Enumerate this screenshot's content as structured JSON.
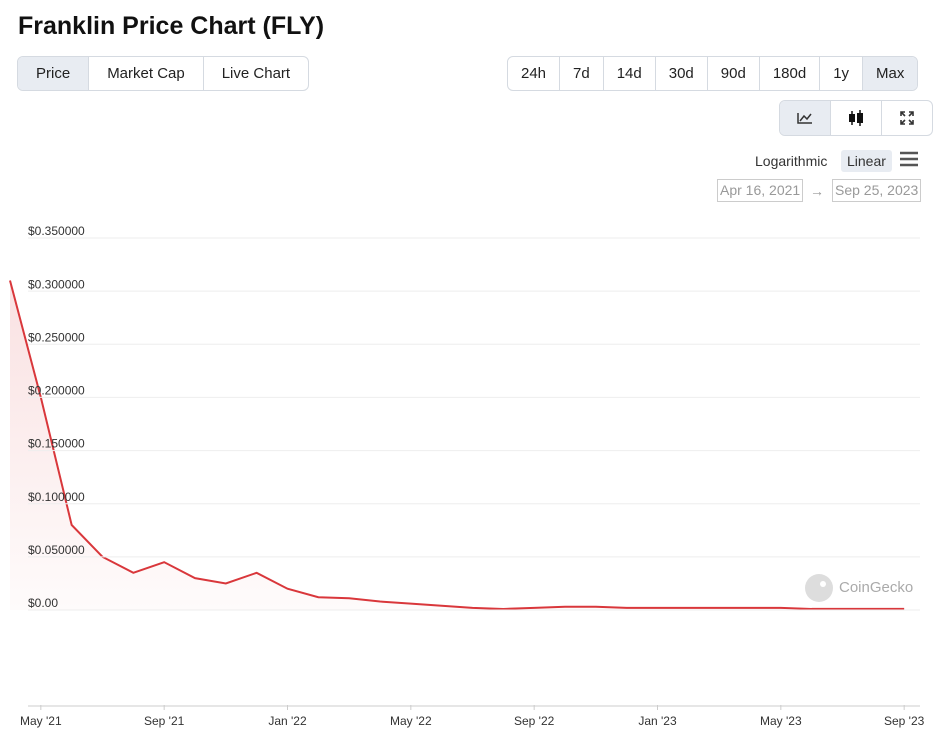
{
  "header": {
    "title": "Franklin Price Chart (FLY)"
  },
  "tabs": [
    "Price",
    "Market Cap",
    "Live Chart"
  ],
  "ranges": [
    "24h",
    "7d",
    "14d",
    "30d",
    "90d",
    "180d",
    "1y",
    "Max"
  ],
  "scale_options": [
    "Logarithmic",
    "Linear"
  ],
  "date_range": {
    "from": "Apr 16, 2021",
    "separator": "→",
    "to": "Sep 25, 2023"
  },
  "watermark": "CoinGecko",
  "chart_data": {
    "type": "line",
    "x": [
      "2021-04",
      "2021-05",
      "2021-06",
      "2021-07",
      "2021-08",
      "2021-09",
      "2021-10",
      "2021-11",
      "2021-12",
      "2022-01",
      "2022-02",
      "2022-03",
      "2022-04",
      "2022-05",
      "2022-06",
      "2022-07",
      "2022-08",
      "2022-09",
      "2022-10",
      "2022-11",
      "2022-12",
      "2023-01",
      "2023-02",
      "2023-03",
      "2023-04",
      "2023-05",
      "2023-06",
      "2023-07",
      "2023-08",
      "2023-09"
    ],
    "series": [
      {
        "name": "Price",
        "color": "#d9373b",
        "values": [
          0.31,
          0.2,
          0.08,
          0.05,
          0.035,
          0.045,
          0.03,
          0.025,
          0.035,
          0.02,
          0.012,
          0.011,
          0.008,
          0.006,
          0.004,
          0.002,
          0.001,
          0.002,
          0.003,
          0.003,
          0.002,
          0.002,
          0.002,
          0.002,
          0.002,
          0.002,
          0.001,
          0.001,
          0.001,
          0.001
        ]
      }
    ],
    "xlim": [
      "2021-04",
      "2023-10"
    ],
    "xticks": [
      {
        "value": "2021-05",
        "label": "May '21"
      },
      {
        "value": "2021-09",
        "label": "Sep '21"
      },
      {
        "value": "2022-01",
        "label": "Jan '22"
      },
      {
        "value": "2022-05",
        "label": "May '22"
      },
      {
        "value": "2022-09",
        "label": "Sep '22"
      },
      {
        "value": "2023-01",
        "label": "Jan '23"
      },
      {
        "value": "2023-05",
        "label": "May '23"
      },
      {
        "value": "2023-09",
        "label": "Sep '23"
      }
    ],
    "ylim": [
      0,
      0.35
    ],
    "yticks": [
      {
        "value": 0,
        "label": "$0.00"
      },
      {
        "value": 0.05,
        "label": "$0.050000"
      },
      {
        "value": 0.1,
        "label": "$0.100000"
      },
      {
        "value": 0.15,
        "label": "$0.150000"
      },
      {
        "value": 0.2,
        "label": "$0.200000"
      },
      {
        "value": 0.25,
        "label": "$0.250000"
      },
      {
        "value": 0.3,
        "label": "$0.300000"
      },
      {
        "value": 0.35,
        "label": "$0.350000"
      }
    ],
    "grid": true
  }
}
